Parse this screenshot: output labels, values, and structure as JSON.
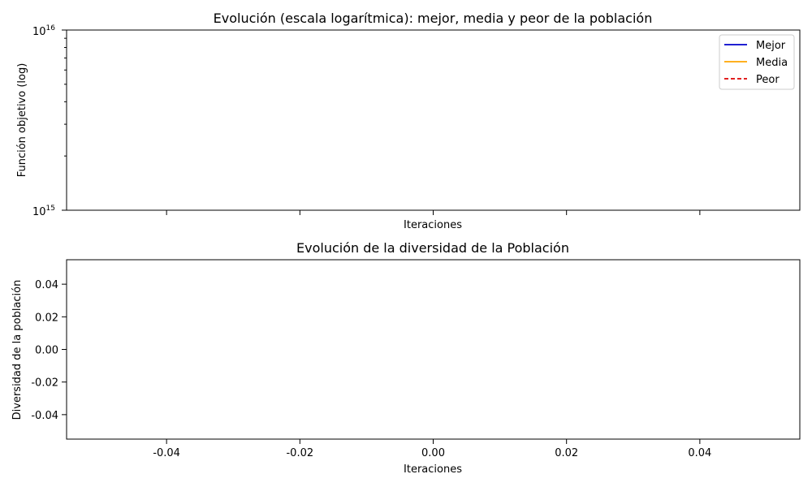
{
  "chart_data": [
    {
      "type": "line",
      "title": "Evolución (escala logarítmica): mejor, media y peor de la población",
      "xlabel": "Iteraciones",
      "ylabel": "Función objetivo (log)",
      "yscale": "log",
      "ylim": [
        1000000000000000.0,
        1e+16
      ],
      "y_ticks": [
        {
          "base": "10",
          "exp": "15"
        },
        {
          "base": "10",
          "exp": "16"
        }
      ],
      "x_tick_labels_visible": false,
      "legend_position": "top-right",
      "series": [
        {
          "name": "Mejor",
          "color": "#0000cc",
          "style": "solid",
          "values": []
        },
        {
          "name": "Media",
          "color": "#ffa500",
          "style": "solid",
          "values": []
        },
        {
          "name": "Peor",
          "color": "#dd0000",
          "style": "dashed",
          "values": []
        }
      ]
    },
    {
      "type": "line",
      "title": "Evolución de la diversidad de la Población",
      "xlabel": "Iteraciones",
      "ylabel": "Diversidad de la población",
      "xlim": [
        -0.055,
        0.055
      ],
      "ylim": [
        -0.055,
        0.055
      ],
      "x_ticks": [
        "-0.04",
        "-0.02",
        "0.00",
        "0.02",
        "0.04"
      ],
      "x_tick_values": [
        -0.04,
        -0.02,
        0.0,
        0.02,
        0.04
      ],
      "y_ticks": [
        "0.04",
        "0.02",
        "0.00",
        "-0.02",
        "-0.04"
      ],
      "y_tick_values": [
        0.04,
        0.02,
        0.0,
        -0.02,
        -0.04
      ],
      "series": []
    }
  ]
}
